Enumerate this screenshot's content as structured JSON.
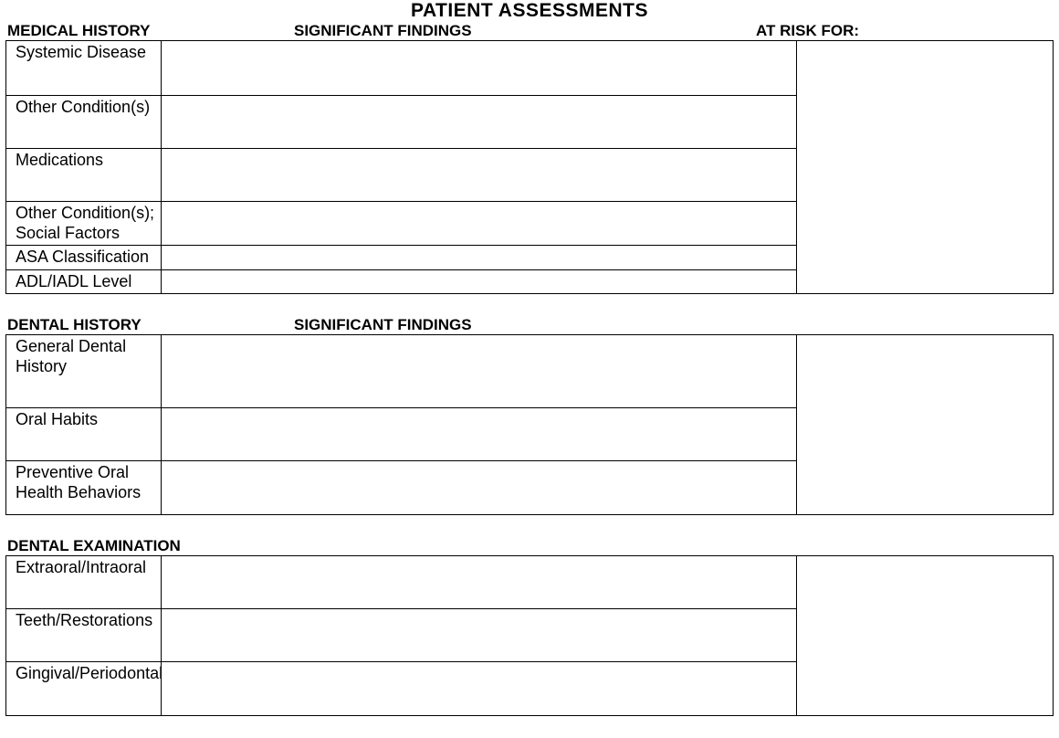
{
  "page_title": "PATIENT ASSESSMENTS",
  "colors": {
    "text": "#000000",
    "background": "#ffffff",
    "border": "#000000"
  },
  "typography": {
    "title_fontsize": 21,
    "header_fontsize": 17,
    "label_fontsize": 18,
    "font_family": "Arial"
  },
  "sections": [
    {
      "id": "medical_history",
      "headers": {
        "col1": "MEDICAL HISTORY",
        "col2": "SIGNIFICANT FINDINGS",
        "col3": "AT RISK FOR:"
      },
      "show_col3_header": true,
      "rows": [
        {
          "label": "Systemic Disease",
          "findings": "",
          "height_class": "h-tall"
        },
        {
          "label": "Other Condition(s)",
          "findings": "",
          "height_class": "h-med"
        },
        {
          "label": "Medications",
          "findings": "",
          "height_class": "h-med"
        },
        {
          "label": "Other Condition(s); Social Factors",
          "findings": "",
          "height_class": "h-mid"
        },
        {
          "label": "ASA Classification",
          "findings": "",
          "height_class": "h-short"
        },
        {
          "label": "ADL/IADL Level",
          "findings": "",
          "height_class": "h-short"
        }
      ],
      "risk": ""
    },
    {
      "id": "dental_history",
      "headers": {
        "col1": "DENTAL HISTORY",
        "col2": "SIGNIFICANT FINDINGS",
        "col3": ""
      },
      "show_col3_header": false,
      "rows": [
        {
          "label": "General Dental History",
          "findings": "",
          "height_class": "h-big"
        },
        {
          "label": "Oral Habits",
          "findings": "",
          "height_class": "h-med"
        },
        {
          "label": "Preventive Oral Health Behaviors",
          "findings": "",
          "height_class": "h-med"
        }
      ],
      "risk": ""
    },
    {
      "id": "dental_examination",
      "headers": {
        "col1": "DENTAL EXAMINATION",
        "col2": "",
        "col3": ""
      },
      "show_col3_header": false,
      "rows": [
        {
          "label": "Extraoral/Intraoral",
          "findings": "",
          "height_class": "h-exam"
        },
        {
          "label": "Teeth/Restorations",
          "findings": "",
          "height_class": "h-exam"
        },
        {
          "label": "Gingival/Periodontal",
          "findings": "",
          "height_class": "h-exam"
        }
      ],
      "risk": ""
    }
  ]
}
